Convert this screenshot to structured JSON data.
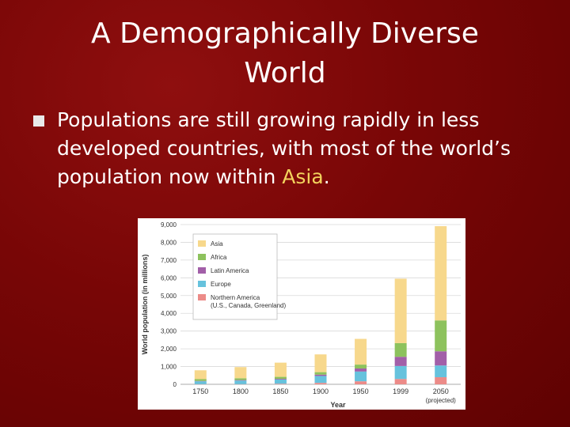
{
  "slide": {
    "title_line1": "A Demographically Diverse",
    "title_line2": "World",
    "bullet_part1": "Populations are still growing rapidly in less developed countries, with most of the world’s population now within ",
    "bullet_highlight": "Asia",
    "bullet_part2": "."
  },
  "colors": {
    "background": "#780606",
    "text": "#ffffff",
    "highlight": "#f3d35d",
    "bullet": "#e9e9e9"
  },
  "chart_data": {
    "type": "bar",
    "stacked": true,
    "categories": [
      "1750",
      "1800",
      "1850",
      "1900",
      "1950",
      "1999",
      "2050"
    ],
    "category_sublabels": [
      "",
      "",
      "",
      "",
      "",
      "",
      "(projected)"
    ],
    "series": [
      {
        "name": "Northern America",
        "color": "#ec8b88",
        "values": [
          10,
          10,
          30,
          80,
          170,
          300,
          400
        ]
      },
      {
        "name": "Europe",
        "color": "#66c2dd",
        "values": [
          160,
          200,
          240,
          390,
          550,
          730,
          660
        ]
      },
      {
        "name": "Latin America",
        "color": "#a25fa8",
        "values": [
          20,
          30,
          40,
          75,
          170,
          520,
          800
        ]
      },
      {
        "name": "Africa",
        "color": "#8dc25d",
        "values": [
          100,
          100,
          110,
          140,
          220,
          770,
          1740
        ]
      },
      {
        "name": "Asia",
        "color": "#f7d88c",
        "values": [
          500,
          630,
          800,
          1000,
          1450,
          3630,
          5310
        ]
      }
    ],
    "legend_order": [
      "Asia",
      "Africa",
      "Latin America",
      "Europe",
      "Northern America"
    ],
    "legend_note": "(U.S., Canada, Greenland)",
    "legend_position": "top-left",
    "xlabel": "Year",
    "ylabel": "World population (in millions)",
    "ylim": [
      0,
      9000
    ],
    "yticks": [
      "0",
      "1,000",
      "2,000",
      "3,000",
      "4,000",
      "5,000",
      "6,000",
      "7,000",
      "8,000",
      "9,000"
    ],
    "grid": true
  }
}
